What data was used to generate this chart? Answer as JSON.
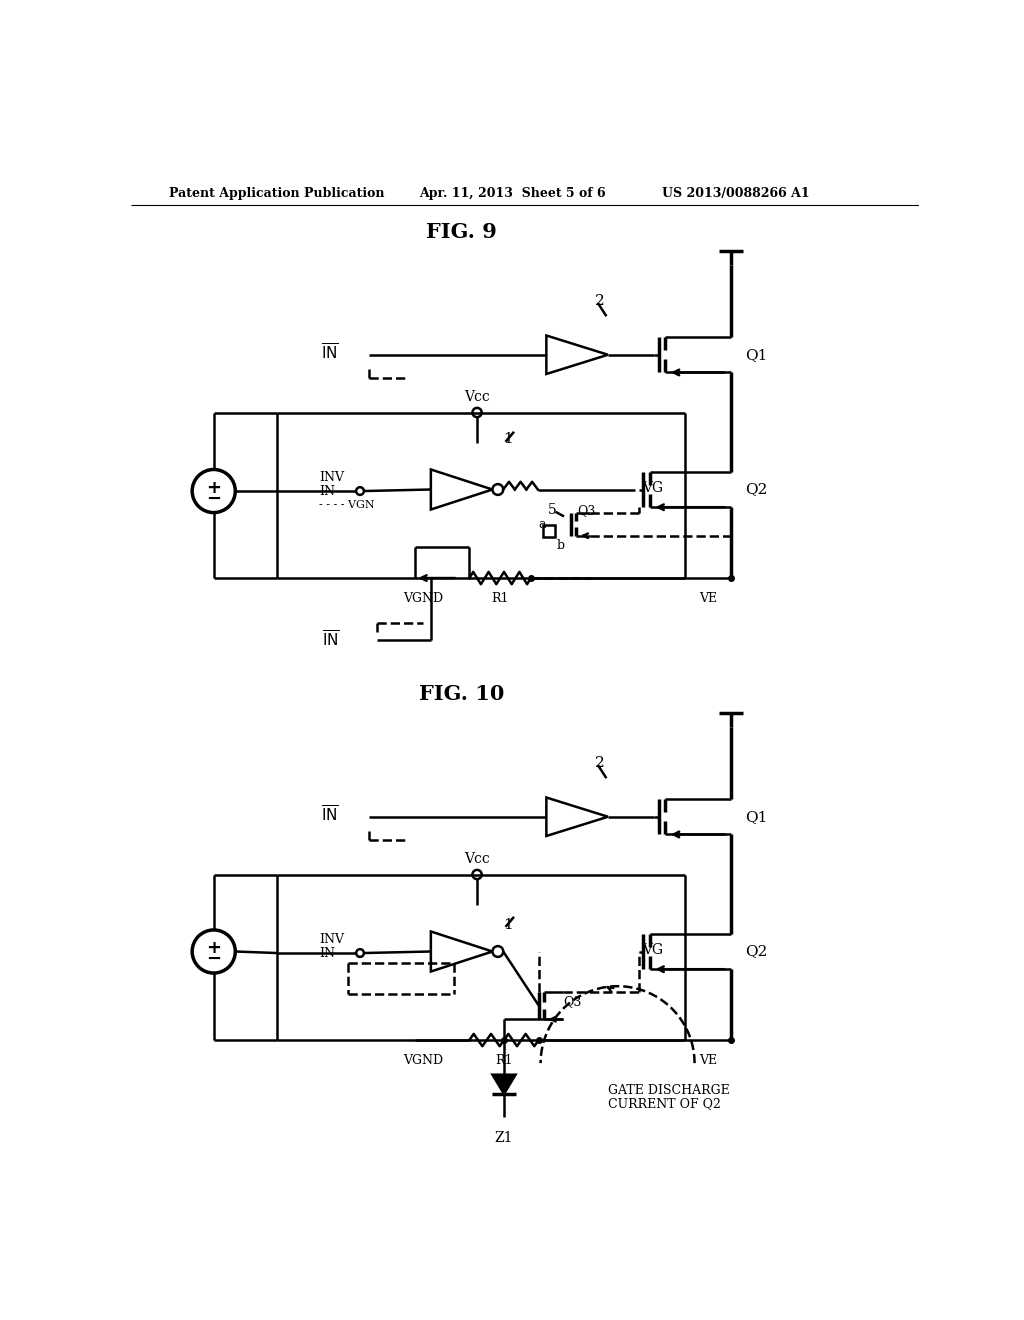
{
  "bg_color": "#ffffff",
  "line_color": "#000000",
  "header_left": "Patent Application Publication",
  "header_center": "Apr. 11, 2013  Sheet 5 of 6",
  "header_right": "US 2013/0088266 A1",
  "fig9_title": "FIG. 9",
  "fig10_title": "FIG. 10",
  "lw": 1.8,
  "lw_thick": 2.5,
  "lw_thin": 1.2
}
